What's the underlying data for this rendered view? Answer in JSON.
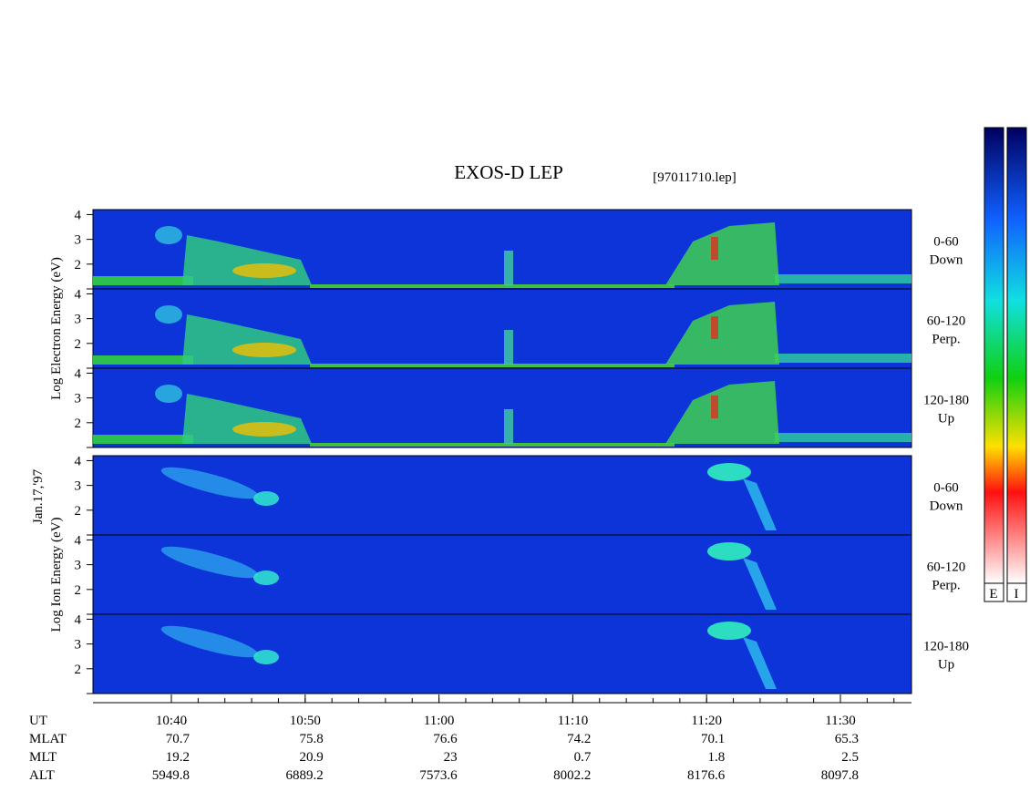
{
  "chart_data": {
    "type": "spectrogram",
    "title": "EXOS-D LEP",
    "subtitle": "[97011710.lep]",
    "date": "Jan.17,'97",
    "colorbar_labels": [
      "E",
      "I"
    ],
    "ylim": [
      1,
      4.2
    ],
    "yticks": [
      2,
      3,
      4
    ],
    "groups": [
      {
        "label": "Log  Electron  Energy  (eV)",
        "panels": [
          {
            "label": [
              "0-60",
              "Down"
            ]
          },
          {
            "label": [
              "60-120",
              "Perp."
            ]
          },
          {
            "label": [
              "120-180",
              "Up"
            ]
          }
        ]
      },
      {
        "label": "Log  Ion  Energy  (eV)",
        "panels": [
          {
            "label": [
              "0-60",
              "Down"
            ]
          },
          {
            "label": [
              "60-120",
              "Perp."
            ]
          },
          {
            "label": [
              "120-180",
              "Up"
            ]
          }
        ]
      }
    ],
    "x_label": "UT",
    "x_labels": [
      "10:40",
      "10:50",
      "11:00",
      "11:10",
      "11:20",
      "11:30"
    ],
    "ephemeris": [
      {
        "name": "MLAT",
        "values": [
          70.7,
          75.8,
          76.6,
          74.2,
          70.1,
          65.3
        ]
      },
      {
        "name": "MLT",
        "values": [
          19.2,
          20.9,
          23.0,
          0.7,
          1.8,
          2.5
        ]
      },
      {
        "name": "ALT",
        "values": [
          5949.8,
          6889.2,
          7573.6,
          8002.2,
          8176.6,
          8097.8
        ]
      }
    ]
  }
}
